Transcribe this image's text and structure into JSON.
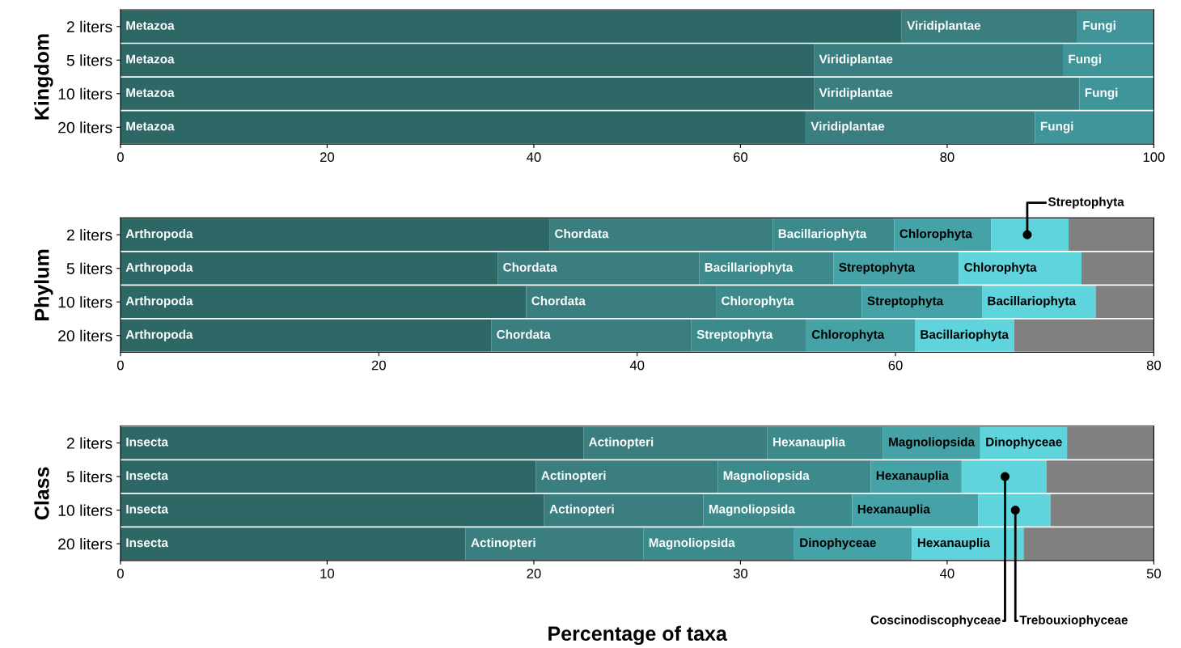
{
  "chart_data": [
    {
      "type": "bar",
      "orientation": "horizontal",
      "stacked": true,
      "ylabel": "Kingdom",
      "categories": [
        "2 liters",
        "5 liters",
        "10 liters",
        "20 liters"
      ],
      "xlim": [
        0,
        100
      ],
      "xticks": [
        0,
        20,
        40,
        60,
        80,
        100
      ],
      "series": [
        {
          "color": "#2d6867",
          "values": [
            75.6,
            67.1,
            67.1,
            66.3
          ],
          "value_labels": [
            "Metazoa",
            "Metazoa",
            "Metazoa",
            "Metazoa"
          ]
        },
        {
          "color": "#3a7e7f",
          "values": [
            17.0,
            24.1,
            25.7,
            22.2
          ],
          "value_labels": [
            "Viridiplantae",
            "Viridiplantae",
            "Viridiplantae",
            "Viridiplantae"
          ]
        },
        {
          "color": "#3f9599",
          "values": [
            7.4,
            8.8,
            7.2,
            11.5
          ],
          "value_labels": [
            "Fungi",
            "Fungi",
            "Fungi",
            "Fungi"
          ]
        }
      ]
    },
    {
      "type": "bar",
      "orientation": "horizontal",
      "stacked": true,
      "ylabel": "Phylum",
      "categories": [
        "2 liters",
        "5 liters",
        "10 liters",
        "20 liters"
      ],
      "xlim": [
        0,
        80
      ],
      "xticks": [
        0,
        20,
        40,
        60,
        80
      ],
      "series": [
        {
          "color": "#2d6867",
          "values": [
            33.2,
            29.2,
            31.4,
            28.7
          ],
          "value_labels": [
            "Arthropoda",
            "Arthropoda",
            "Arthropoda",
            "Arthropoda"
          ]
        },
        {
          "color": "#3a7e7f",
          "values": [
            17.3,
            15.6,
            14.7,
            15.5
          ],
          "value_labels": [
            "Chordata",
            "Chordata",
            "Chordata",
            "Chordata"
          ]
        },
        {
          "color": "#3d8a8d",
          "values": [
            9.4,
            10.4,
            11.3,
            8.9
          ],
          "value_labels": [
            "Bacillariophyta",
            "Bacillariophyta",
            "Chlorophyta",
            "Streptophyta"
          ]
        },
        {
          "color": "#45a3a8",
          "values": [
            7.5,
            9.7,
            9.3,
            8.4
          ],
          "value_labels": [
            "Chlorophyta",
            "Streptophyta",
            "Streptophyta",
            "Chlorophyta"
          ]
        },
        {
          "color": "#5fd4dd",
          "values": [
            6.0,
            9.5,
            8.8,
            7.7
          ],
          "value_labels": [
            null,
            "Chlorophyta",
            "Bacillariophyta",
            "Bacillariophyta"
          ]
        },
        {
          "color": "#808080",
          "values": [
            6.6,
            5.6,
            4.5,
            10.8
          ]
        }
      ],
      "annotations": [
        {
          "text": "Streptophyta",
          "x": 70.2,
          "y": "2 liters"
        }
      ]
    },
    {
      "type": "bar",
      "orientation": "horizontal",
      "stacked": true,
      "ylabel": "Class",
      "xlabel": "Percentage of taxa",
      "categories": [
        "2 liters",
        "5 liters",
        "10 liters",
        "20 liters"
      ],
      "xlim": [
        0,
        50
      ],
      "xticks": [
        0,
        10,
        20,
        30,
        40,
        50
      ],
      "series": [
        {
          "color": "#2d6867",
          "values": [
            22.4,
            20.1,
            20.5,
            16.7
          ],
          "value_labels": [
            "Insecta",
            "Insecta",
            "Insecta",
            "Insecta"
          ]
        },
        {
          "color": "#3a7e7f",
          "values": [
            8.9,
            8.8,
            7.7,
            8.6
          ],
          "value_labels": [
            "Actinopteri",
            "Actinopteri",
            "Actinopteri",
            "Actinopteri"
          ]
        },
        {
          "color": "#3d8a8d",
          "values": [
            5.6,
            7.4,
            7.2,
            7.3
          ],
          "value_labels": [
            "Hexanauplia",
            "Magnoliopsida",
            "Magnoliopsida",
            "Magnoliopsida"
          ]
        },
        {
          "color": "#45a3a8",
          "values": [
            4.7,
            4.4,
            6.1,
            5.7
          ],
          "value_labels": [
            "Magnoliopsida",
            "Hexanauplia",
            "Hexanauplia",
            "Dinophyceae"
          ]
        },
        {
          "color": "#5fd4dd",
          "values": [
            4.2,
            4.1,
            3.5,
            5.4
          ],
          "value_labels": [
            "Dinophyceae",
            null,
            null,
            "Hexanauplia"
          ]
        },
        {
          "color": "#808080",
          "values": [
            4.2,
            5.2,
            5.0,
            6.3
          ]
        }
      ],
      "annotations": [
        {
          "text": "Coscinodiscophyceae",
          "x": 42.8,
          "y": "5 liters"
        },
        {
          "text": "Trebouxiophyceae",
          "x": 43.3,
          "y": "10 liters"
        }
      ]
    }
  ]
}
